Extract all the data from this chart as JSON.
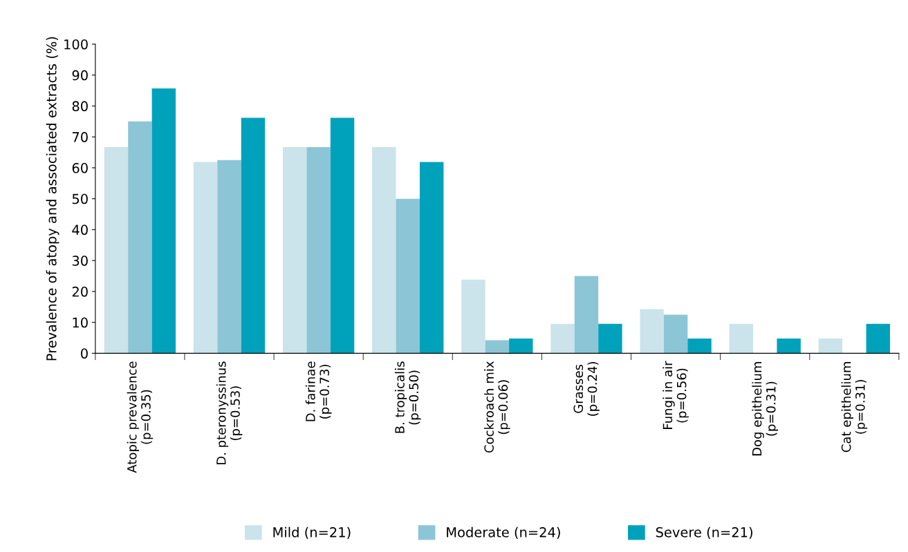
{
  "chart_data": {
    "type": "bar",
    "ylabel": "Prevalence of atopy and associated extracts (%)",
    "categories": [
      "Atopic prevalence\n(p=0.35)",
      "D. pteronyssinus\n(p=0.53)",
      "D. farinae\n(p=0.73)",
      "B. tropicalis\n(p=0.50)",
      "Cockroach mix\n(p=0.06)",
      "Grasses\n(p=0.24)",
      "Fungi in air\n(p=0.56)",
      "Dog epithelium\n(p=0.31)",
      "Cat epithelium\n(p=0.31)"
    ],
    "series": [
      {
        "name": "Mild (n=21)",
        "color": "#cbe3ea",
        "values": [
          66.7,
          61.9,
          66.7,
          66.7,
          23.8,
          9.5,
          14.3,
          9.5,
          4.8
        ]
      },
      {
        "name": "Moderate (n=24)",
        "color": "#8cc5d6",
        "values": [
          75,
          62.5,
          66.7,
          50,
          4.2,
          25,
          12.5,
          0,
          0
        ]
      },
      {
        "name": "Severe (n=21)",
        "color": "#00a2bb",
        "values": [
          85.7,
          76.2,
          76.2,
          61.9,
          4.8,
          9.5,
          4.8,
          4.8,
          9.5
        ]
      }
    ],
    "ylim": [
      0,
      100
    ],
    "yticks": [
      0,
      10,
      20,
      30,
      40,
      50,
      60,
      70,
      80,
      90,
      100
    ],
    "grid": false,
    "legend": "bottom"
  }
}
